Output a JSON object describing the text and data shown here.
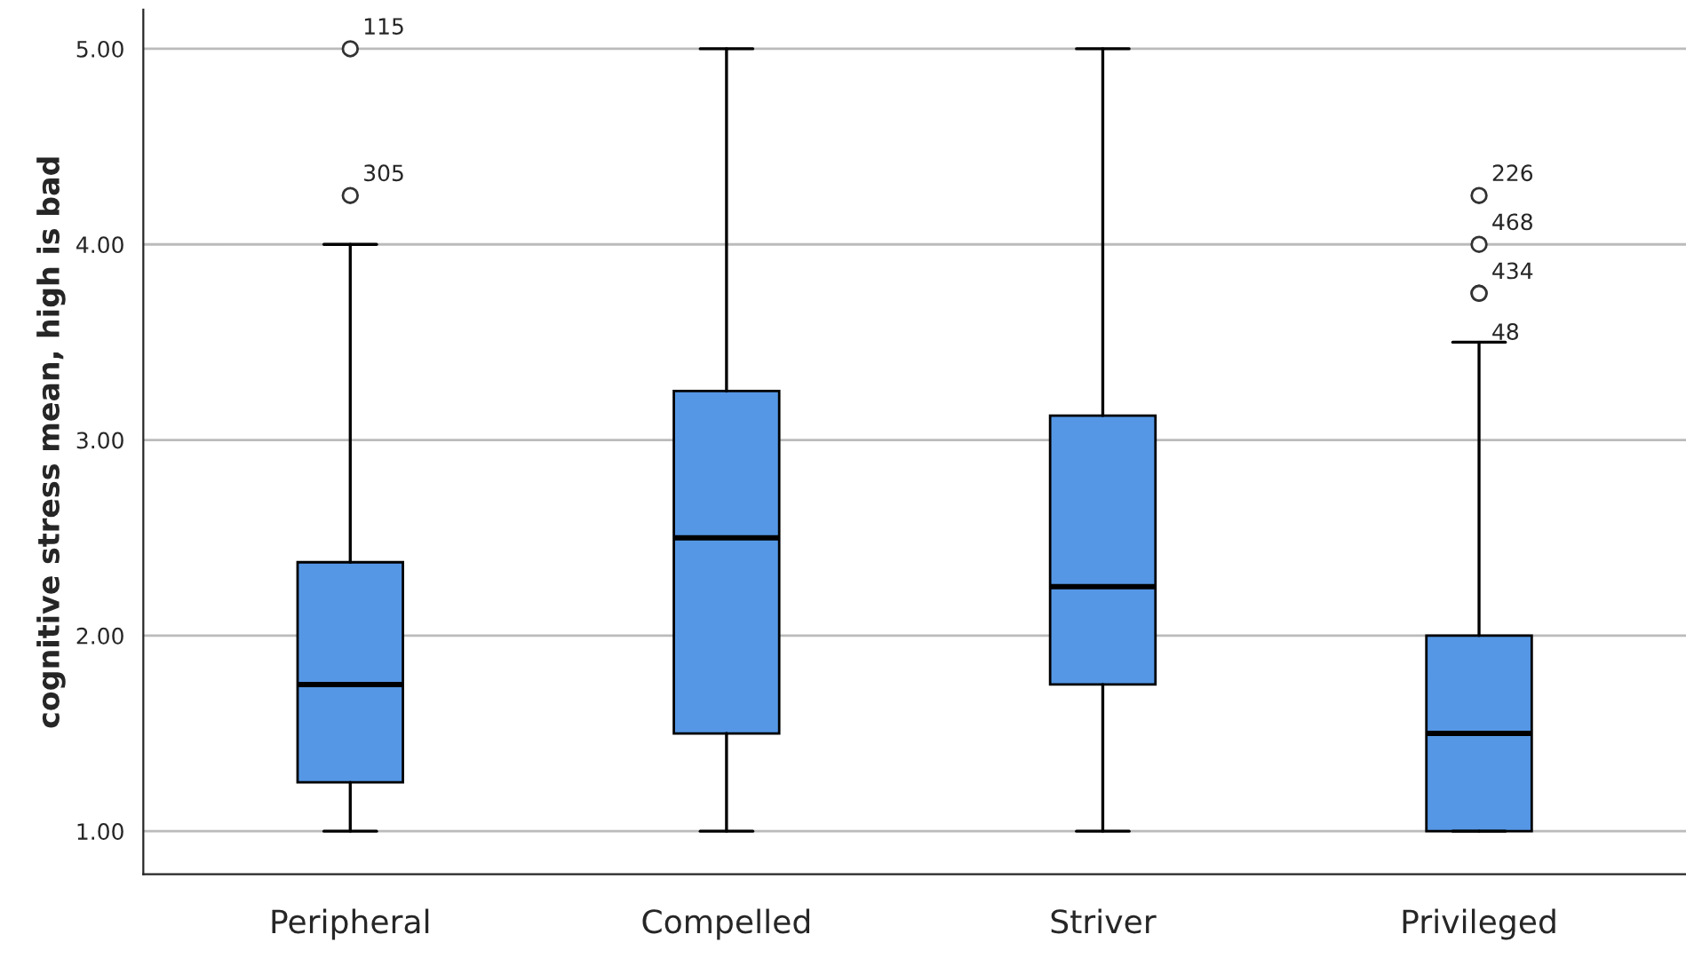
{
  "chart_data": {
    "type": "box",
    "ylabel": "cognitive stress mean, high is bad",
    "categories": [
      "Peripheral",
      "Compelled",
      "Striver",
      "Privileged"
    ],
    "color": "#5597e5",
    "boxes": [
      {
        "low": 1.0,
        "q1": 1.25,
        "median": 1.75,
        "q3": 2.375,
        "high": 4.0,
        "outliers": [
          5.0,
          4.25
        ]
      },
      {
        "low": 1.0,
        "q1": 1.5,
        "median": 2.5,
        "q3": 3.25,
        "high": 5.0
      },
      {
        "low": 1.0,
        "q1": 1.75,
        "median": 2.25,
        "q3": 3.125,
        "high": 5.0
      },
      {
        "low": 1.0,
        "q1": 1.0,
        "median": 1.5,
        "q3": 2.0,
        "high": 3.5,
        "outliers": [
          4.25,
          4.0,
          3.75,
          3.75
        ]
      }
    ],
    "ylim": [
      0.78,
      5.2
    ],
    "yticks": [
      {
        "value": 1,
        "label": "1.00"
      },
      {
        "value": 2,
        "label": "2.00"
      },
      {
        "value": 3,
        "label": "3.00"
      },
      {
        "value": 4,
        "label": "4.00"
      },
      {
        "value": 5,
        "label": "5.00"
      }
    ],
    "grid": "y",
    "annotations": [
      "115",
      "305",
      "226",
      "468",
      "434",
      "48"
    ]
  }
}
